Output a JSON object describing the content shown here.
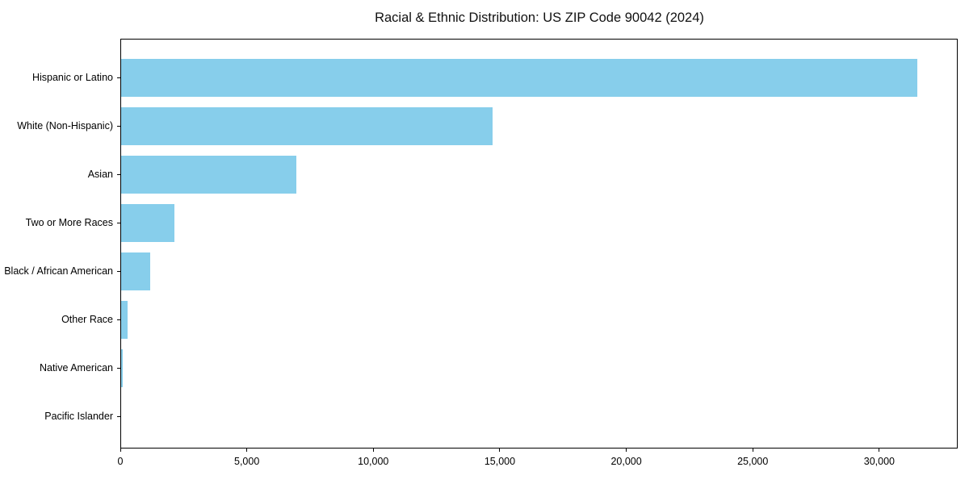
{
  "chart_data": {
    "type": "bar",
    "orientation": "horizontal",
    "title": "Racial & Ethnic Distribution: US ZIP Code 90042 (2024)",
    "categories": [
      "Hispanic or Latino",
      "White (Non-Hispanic)",
      "Asian",
      "Two or More Races",
      "Black / African American",
      "Other Race",
      "Native American",
      "Pacific Islander"
    ],
    "values": [
      31500,
      14700,
      6950,
      2150,
      1180,
      300,
      90,
      25
    ],
    "xlabel": "",
    "ylabel": "",
    "xlim": [
      0,
      33100
    ],
    "x_ticks": [
      0,
      5000,
      10000,
      15000,
      20000,
      25000,
      30000
    ],
    "x_tick_labels": [
      "0",
      "5,000",
      "10,000",
      "15,000",
      "20,000",
      "25,000",
      "30,000"
    ],
    "bar_color": "#87CEEB",
    "grid": false,
    "legend_position": "none"
  }
}
